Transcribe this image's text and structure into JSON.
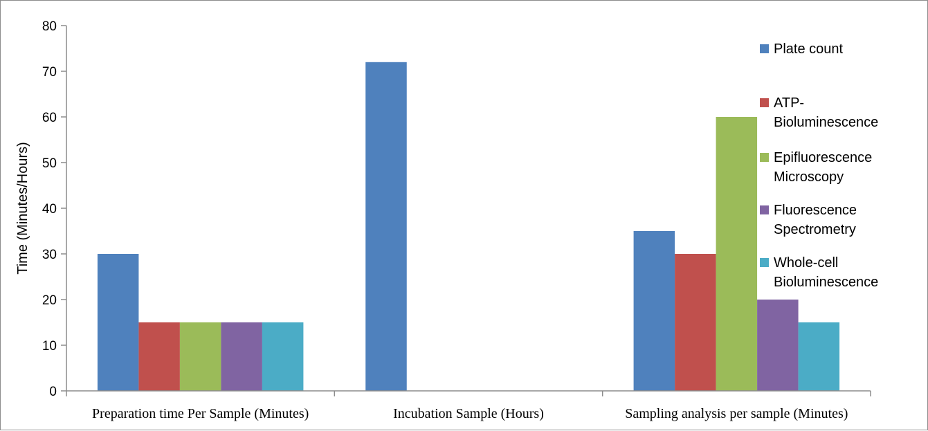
{
  "chart_data": {
    "type": "bar",
    "title": "",
    "xlabel": "",
    "ylabel": "Time (Minutes/Hours)",
    "ylim": [
      0,
      80
    ],
    "yticks": [
      0,
      10,
      20,
      30,
      40,
      50,
      60,
      70,
      80
    ],
    "grid": false,
    "legend_position": "right",
    "categories": [
      "Preparation time Per Sample (Minutes)",
      "Incubation Sample (Hours)",
      "Sampling analysis per sample (Minutes)"
    ],
    "series": [
      {
        "name": "Plate count",
        "legend_lines": [
          "Plate count"
        ],
        "color": "#4F81BD",
        "values": [
          30,
          72,
          35
        ]
      },
      {
        "name": "ATP-Bioluminescence",
        "legend_lines": [
          "ATP-",
          "Bioluminescence"
        ],
        "color": "#C0504D",
        "values": [
          15,
          0,
          30
        ]
      },
      {
        "name": "Epifluorescence Microscopy",
        "legend_lines": [
          "Epifluorescence",
          "Microscopy"
        ],
        "color": "#9BBB59",
        "values": [
          15,
          0,
          60
        ]
      },
      {
        "name": "Fluorescence Spectrometry",
        "legend_lines": [
          "Fluorescence",
          "Spectrometry"
        ],
        "color": "#8064A2",
        "values": [
          15,
          0,
          20
        ]
      },
      {
        "name": "Whole-cell Bioluminescence",
        "legend_lines": [
          "Whole-cell",
          "Bioluminescence"
        ],
        "color": "#4BACC6",
        "values": [
          15,
          0,
          15
        ]
      }
    ]
  }
}
